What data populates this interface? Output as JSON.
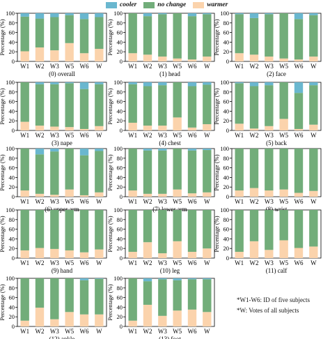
{
  "legend": [
    {
      "name": "cooler",
      "color": "#6ab7cf"
    },
    {
      "name": "no change",
      "color": "#72ad7a"
    },
    {
      "name": "warmer",
      "color": "#fbd3ac"
    }
  ],
  "notes": [
    "*W1-W6: ID of five subjects",
    "*W: Votes of  all subjects"
  ],
  "chart_data": [
    {
      "type": "bar",
      "stacked": true,
      "title": "(0) overall",
      "ylabel": "Percentage (%)",
      "ylim": [
        0,
        100
      ],
      "yticks": [
        0,
        20,
        40,
        60,
        80,
        100
      ],
      "categories": [
        "W1",
        "W2",
        "W3",
        "W5",
        "W6",
        "W"
      ],
      "series": [
        {
          "name": "warmer",
          "values": [
            21,
            29,
            23,
            38,
            17,
            26
          ]
        },
        {
          "name": "no change",
          "values": [
            72,
            60,
            69,
            58,
            71,
            66
          ]
        },
        {
          "name": "cooler",
          "values": [
            7,
            11,
            8,
            4,
            12,
            8
          ]
        }
      ]
    },
    {
      "type": "bar",
      "stacked": true,
      "title": "(1) head",
      "ylabel": "Percentage (%)",
      "ylim": [
        0,
        100
      ],
      "yticks": [
        0,
        20,
        40,
        60,
        80,
        100
      ],
      "categories": [
        "W1",
        "W2",
        "W3",
        "W5",
        "W6",
        "W"
      ],
      "series": [
        {
          "name": "warmer",
          "values": [
            17,
            14,
            10,
            6,
            4,
            10
          ]
        },
        {
          "name": "no change",
          "values": [
            83,
            80,
            88,
            94,
            90,
            88
          ]
        },
        {
          "name": "cooler",
          "values": [
            0,
            6,
            2,
            0,
            6,
            2
          ]
        }
      ]
    },
    {
      "type": "bar",
      "stacked": true,
      "title": "(2) face",
      "ylabel": "Percentage (%)",
      "ylim": [
        0,
        100
      ],
      "yticks": [
        0,
        20,
        40,
        60,
        80,
        100
      ],
      "categories": [
        "W1",
        "W2",
        "W3",
        "W5",
        "W6",
        "W"
      ],
      "series": [
        {
          "name": "warmer",
          "values": [
            17,
            14,
            10,
            6,
            4,
            10
          ]
        },
        {
          "name": "no change",
          "values": [
            81,
            76,
            88,
            94,
            84,
            86
          ]
        },
        {
          "name": "cooler",
          "values": [
            2,
            10,
            2,
            0,
            12,
            4
          ]
        }
      ]
    },
    {
      "type": "bar",
      "stacked": true,
      "title": "(3) nape",
      "ylabel": "Percentage (%)",
      "ylim": [
        0,
        100
      ],
      "yticks": [
        0,
        20,
        40,
        60,
        80,
        100
      ],
      "categories": [
        "W1",
        "W2",
        "W3",
        "W5",
        "W6",
        "W"
      ],
      "series": [
        {
          "name": "warmer",
          "values": [
            18,
            10,
            8,
            7,
            3,
            9
          ]
        },
        {
          "name": "no change",
          "values": [
            82,
            86,
            88,
            91,
            83,
            87
          ]
        },
        {
          "name": "cooler",
          "values": [
            0,
            4,
            4,
            2,
            14,
            4
          ]
        }
      ]
    },
    {
      "type": "bar",
      "stacked": true,
      "title": "(4) chest",
      "ylabel": "Percentage (%)",
      "ylim": [
        0,
        100
      ],
      "yticks": [
        0,
        20,
        40,
        60,
        80,
        100
      ],
      "categories": [
        "W1",
        "W2",
        "W3",
        "W5",
        "W6",
        "W"
      ],
      "series": [
        {
          "name": "warmer",
          "values": [
            16,
            10,
            10,
            27,
            6,
            13
          ]
        },
        {
          "name": "no change",
          "values": [
            80,
            82,
            84,
            73,
            86,
            82
          ]
        },
        {
          "name": "cooler",
          "values": [
            4,
            8,
            6,
            0,
            8,
            5
          ]
        }
      ]
    },
    {
      "type": "bar",
      "stacked": true,
      "title": "(5) back",
      "ylabel": "Percentage (%)",
      "ylim": [
        0,
        100
      ],
      "yticks": [
        0,
        20,
        40,
        60,
        80,
        100
      ],
      "categories": [
        "W1",
        "W2",
        "W3",
        "W5",
        "W6",
        "W"
      ],
      "series": [
        {
          "name": "warmer",
          "values": [
            14,
            4,
            9,
            24,
            3,
            12
          ]
        },
        {
          "name": "no change",
          "values": [
            84,
            88,
            85,
            76,
            75,
            82
          ]
        },
        {
          "name": "cooler",
          "values": [
            2,
            8,
            6,
            0,
            22,
            6
          ]
        }
      ]
    },
    {
      "type": "bar",
      "stacked": true,
      "title": "(6) upper arm",
      "ylabel": "Percentage (%)",
      "ylim": [
        0,
        100
      ],
      "yticks": [
        0,
        20,
        40,
        60,
        80,
        100
      ],
      "categories": [
        "W1",
        "W2",
        "W3",
        "W5",
        "W6",
        "W"
      ],
      "series": [
        {
          "name": "warmer",
          "values": [
            13,
            6,
            4,
            15,
            3,
            9
          ]
        },
        {
          "name": "no change",
          "values": [
            87,
            82,
            90,
            85,
            83,
            86
          ]
        },
        {
          "name": "cooler",
          "values": [
            0,
            12,
            6,
            0,
            14,
            5
          ]
        }
      ]
    },
    {
      "type": "bar",
      "stacked": true,
      "title": "(7) lower arm",
      "ylabel": "Percentage (%)",
      "ylim": [
        0,
        100
      ],
      "yticks": [
        0,
        20,
        40,
        60,
        80,
        100
      ],
      "categories": [
        "W1",
        "W2",
        "W3",
        "W5",
        "W6",
        "W"
      ],
      "series": [
        {
          "name": "warmer",
          "values": [
            13,
            6,
            6,
            15,
            7,
            9
          ]
        },
        {
          "name": "no change",
          "values": [
            87,
            90,
            90,
            85,
            89,
            88
          ]
        },
        {
          "name": "cooler",
          "values": [
            0,
            4,
            4,
            0,
            4,
            3
          ]
        }
      ]
    },
    {
      "type": "bar",
      "stacked": true,
      "title": "(8) wrist",
      "ylabel": "Percentage (%)",
      "ylim": [
        0,
        100
      ],
      "yticks": [
        0,
        20,
        40,
        60,
        80,
        100
      ],
      "categories": [
        "W1",
        "W2",
        "W3",
        "W5",
        "W6",
        "W"
      ],
      "series": [
        {
          "name": "warmer",
          "values": [
            13,
            18,
            13,
            15,
            8,
            12
          ]
        },
        {
          "name": "no change",
          "values": [
            87,
            82,
            87,
            85,
            92,
            88
          ]
        },
        {
          "name": "cooler",
          "values": [
            0,
            0,
            0,
            0,
            0,
            0
          ]
        }
      ]
    },
    {
      "type": "bar",
      "stacked": true,
      "title": "(9) hand",
      "ylabel": "Percentage (%)",
      "ylim": [
        0,
        100
      ],
      "yticks": [
        0,
        20,
        40,
        60,
        80,
        100
      ],
      "categories": [
        "W1",
        "W2",
        "W3",
        "W5",
        "W6",
        "W"
      ],
      "series": [
        {
          "name": "warmer",
          "values": [
            16,
            21,
            19,
            16,
            12,
            18
          ]
        },
        {
          "name": "no change",
          "values": [
            84,
            79,
            81,
            84,
            88,
            82
          ]
        },
        {
          "name": "cooler",
          "values": [
            0,
            0,
            0,
            0,
            0,
            0
          ]
        }
      ]
    },
    {
      "type": "bar",
      "stacked": true,
      "title": "(10) leg",
      "ylabel": "Percentage (%)",
      "ylim": [
        0,
        100
      ],
      "yticks": [
        0,
        20,
        40,
        60,
        80,
        100
      ],
      "categories": [
        "W1",
        "W2",
        "W3",
        "W5",
        "W6",
        "W"
      ],
      "series": [
        {
          "name": "warmer",
          "values": [
            13,
            33,
            10,
            35,
            13,
            20
          ]
        },
        {
          "name": "no change",
          "values": [
            87,
            67,
            90,
            65,
            87,
            80
          ]
        },
        {
          "name": "cooler",
          "values": [
            0,
            0,
            0,
            0,
            0,
            0
          ]
        }
      ]
    },
    {
      "type": "bar",
      "stacked": true,
      "title": "(11) calf",
      "ylabel": "Percentage (%)",
      "ylim": [
        0,
        100
      ],
      "yticks": [
        0,
        20,
        40,
        60,
        80,
        100
      ],
      "categories": [
        "W1",
        "W2",
        "W3",
        "W5",
        "W6",
        "W"
      ],
      "series": [
        {
          "name": "warmer",
          "values": [
            13,
            35,
            17,
            37,
            21,
            24
          ]
        },
        {
          "name": "no change",
          "values": [
            87,
            65,
            83,
            63,
            79,
            76
          ]
        },
        {
          "name": "cooler",
          "values": [
            0,
            0,
            0,
            0,
            0,
            0
          ]
        }
      ]
    },
    {
      "type": "bar",
      "stacked": true,
      "title": "(12) ankle",
      "ylabel": "Percentage (%)",
      "ylim": [
        0,
        100
      ],
      "yticks": [
        0,
        20,
        40,
        60,
        80,
        100
      ],
      "categories": [
        "W1",
        "W2",
        "W3",
        "W5",
        "W6",
        "W"
      ],
      "series": [
        {
          "name": "warmer",
          "values": [
            12,
            39,
            15,
            30,
            25,
            25
          ]
        },
        {
          "name": "no change",
          "values": [
            88,
            61,
            85,
            70,
            71,
            74
          ]
        },
        {
          "name": "cooler",
          "values": [
            0,
            0,
            0,
            0,
            4,
            1
          ]
        }
      ]
    },
    {
      "type": "bar",
      "stacked": true,
      "title": "(13) foot",
      "ylabel": "Percentage (%)",
      "ylim": [
        0,
        100
      ],
      "yticks": [
        0,
        20,
        40,
        60,
        80,
        100
      ],
      "categories": [
        "W1",
        "W2",
        "W3",
        "W5",
        "W6",
        "W"
      ],
      "series": [
        {
          "name": "warmer",
          "values": [
            12,
            45,
            22,
            33,
            35,
            30
          ]
        },
        {
          "name": "no change",
          "values": [
            88,
            49,
            76,
            63,
            63,
            68
          ]
        },
        {
          "name": "cooler",
          "values": [
            0,
            6,
            2,
            4,
            2,
            2
          ]
        }
      ]
    }
  ]
}
